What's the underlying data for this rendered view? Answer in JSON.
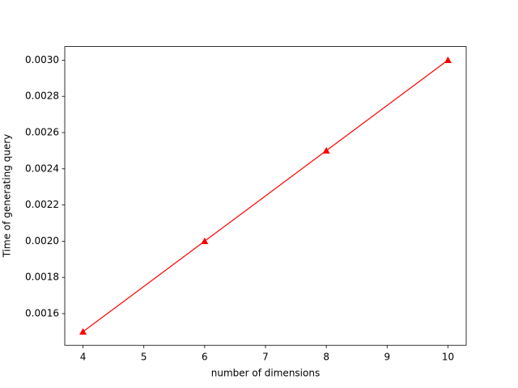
{
  "chart_data": {
    "type": "line",
    "x_label": "number of dimensions",
    "y_label": "Time of generating query",
    "x": [
      4,
      6,
      8,
      10
    ],
    "series": [
      {
        "color": "#ff0000",
        "marker": "triangle",
        "values": [
          0.0015,
          0.002,
          0.0025,
          0.003
        ]
      }
    ],
    "xlim": [
      3.7,
      10.3
    ],
    "xticks": [
      4,
      5,
      6,
      7,
      8,
      9,
      10
    ],
    "ylim": [
      0.001425,
      0.003075
    ],
    "yticks": [
      0.0016,
      0.0018,
      {
        "value": 0.002,
        "label": "0.0020"
      },
      0.0022,
      0.0024,
      0.0026,
      0.0028,
      {
        "value": 0.003,
        "label": "0.0030"
      }
    ],
    "grid": false
  }
}
